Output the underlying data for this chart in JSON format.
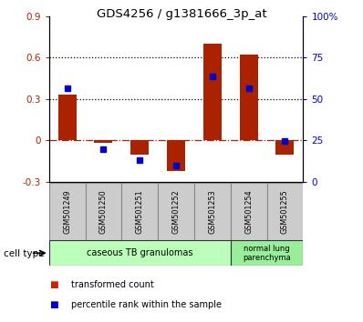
{
  "title": "GDS4256 / g1381666_3p_at",
  "samples": [
    "GSM501249",
    "GSM501250",
    "GSM501251",
    "GSM501252",
    "GSM501253",
    "GSM501254",
    "GSM501255"
  ],
  "transformed_counts": [
    0.33,
    -0.02,
    -0.1,
    -0.22,
    0.7,
    0.62,
    -0.1
  ],
  "percentile_ranks": [
    56.5,
    20.0,
    13.0,
    10.0,
    63.5,
    56.5,
    24.5
  ],
  "bar_color": "#aa2200",
  "dot_color": "#0000cc",
  "ylim_left": [
    -0.3,
    0.9
  ],
  "ylim_right": [
    0,
    100
  ],
  "yticks_left": [
    -0.3,
    0.0,
    0.3,
    0.6,
    0.9
  ],
  "yticks_right": [
    0,
    25,
    50,
    75,
    100
  ],
  "ytick_labels_left": [
    "-0.3",
    "0",
    "0.3",
    "0.6",
    "0.9"
  ],
  "ytick_labels_right": [
    "0",
    "25",
    "50",
    "75",
    "100%"
  ],
  "hlines_dotted": [
    0.3,
    0.6
  ],
  "hline_dashed": 0.0,
  "cell_type_groups": [
    {
      "label": "caseous TB granulomas",
      "start": 0,
      "end": 4,
      "color": "#bbffbb"
    },
    {
      "label": "normal lung\nparenchyma",
      "start": 5,
      "end": 6,
      "color": "#99ee99"
    }
  ],
  "legend_items": [
    {
      "label": "transformed count",
      "color": "#cc2200"
    },
    {
      "label": "percentile rank within the sample",
      "color": "#0000cc"
    }
  ],
  "cell_type_label": "cell type",
  "bar_width": 0.5,
  "sample_box_color": "#cccccc",
  "sample_box_edge": "#888888"
}
